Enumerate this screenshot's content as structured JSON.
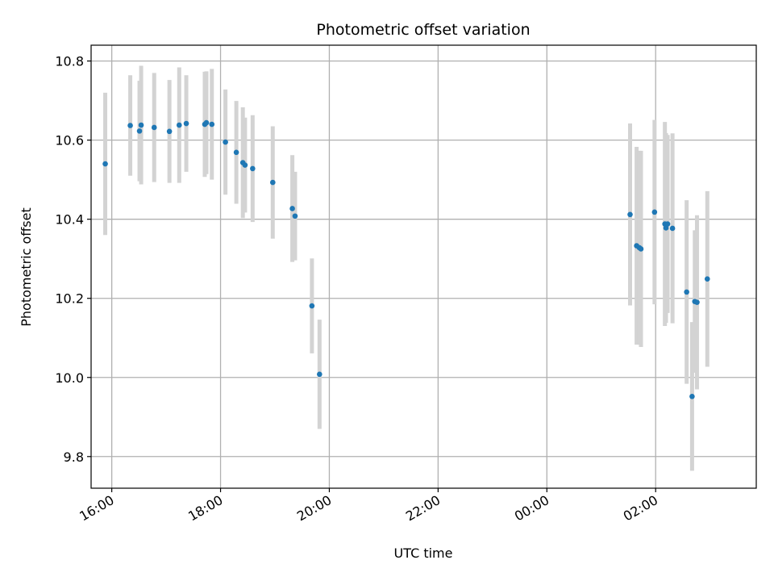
{
  "chart_data": {
    "type": "scatter",
    "title": "Photometric offset variation",
    "xlabel": "UTC time",
    "ylabel": "Photometric offset",
    "x_ticks": [
      "16:00",
      "18:00",
      "20:00",
      "22:00",
      "00:00",
      "02:00"
    ],
    "y_ticks": [
      "9.8",
      "10.0",
      "10.2",
      "10.4",
      "10.6",
      "10.8"
    ],
    "x_tick_hours": [
      16,
      18,
      20,
      22,
      24,
      26
    ],
    "y_tick_values": [
      9.8,
      10.0,
      10.2,
      10.4,
      10.6,
      10.8
    ],
    "xlim_hours": [
      15.62,
      27.85
    ],
    "ylim": [
      9.72,
      10.84
    ],
    "grid": true,
    "marker_color": "#1f77b4",
    "errorbar_color": "#d3d3d3",
    "points": [
      {
        "t": 15.88,
        "y": 10.54,
        "err": 0.18
      },
      {
        "t": 16.34,
        "y": 10.637,
        "err": 0.127
      },
      {
        "t": 16.51,
        "y": 10.623,
        "err": 0.127
      },
      {
        "t": 16.54,
        "y": 10.638,
        "err": 0.15
      },
      {
        "t": 16.78,
        "y": 10.632,
        "err": 0.138
      },
      {
        "t": 17.06,
        "y": 10.622,
        "err": 0.13
      },
      {
        "t": 17.24,
        "y": 10.638,
        "err": 0.146
      },
      {
        "t": 17.37,
        "y": 10.642,
        "err": 0.122
      },
      {
        "t": 17.71,
        "y": 10.64,
        "err": 0.133
      },
      {
        "t": 17.74,
        "y": 10.644,
        "err": 0.13
      },
      {
        "t": 17.84,
        "y": 10.64,
        "err": 0.14
      },
      {
        "t": 18.09,
        "y": 10.595,
        "err": 0.133
      },
      {
        "t": 18.29,
        "y": 10.569,
        "err": 0.13
      },
      {
        "t": 18.41,
        "y": 10.543,
        "err": 0.14
      },
      {
        "t": 18.45,
        "y": 10.537,
        "err": 0.12
      },
      {
        "t": 18.59,
        "y": 10.528,
        "err": 0.135
      },
      {
        "t": 18.96,
        "y": 10.493,
        "err": 0.142
      },
      {
        "t": 19.32,
        "y": 10.427,
        "err": 0.135
      },
      {
        "t": 19.37,
        "y": 10.408,
        "err": 0.112
      },
      {
        "t": 19.68,
        "y": 10.181,
        "err": 0.12
      },
      {
        "t": 19.82,
        "y": 10.008,
        "err": 0.138
      },
      {
        "t": 25.53,
        "y": 10.412,
        "err": 0.23
      },
      {
        "t": 25.65,
        "y": 10.333,
        "err": 0.25
      },
      {
        "t": 25.7,
        "y": 10.328,
        "err": 0.245
      },
      {
        "t": 25.73,
        "y": 10.325,
        "err": 0.248
      },
      {
        "t": 25.98,
        "y": 10.418,
        "err": 0.233
      },
      {
        "t": 26.17,
        "y": 10.388,
        "err": 0.258
      },
      {
        "t": 26.19,
        "y": 10.378,
        "err": 0.24
      },
      {
        "t": 26.22,
        "y": 10.388,
        "err": 0.225
      },
      {
        "t": 26.31,
        "y": 10.377,
        "err": 0.24
      },
      {
        "t": 26.57,
        "y": 10.216,
        "err": 0.232
      },
      {
        "t": 26.67,
        "y": 9.952,
        "err": 0.188
      },
      {
        "t": 26.72,
        "y": 10.192,
        "err": 0.18
      },
      {
        "t": 26.76,
        "y": 10.19,
        "err": 0.22
      },
      {
        "t": 26.95,
        "y": 10.249,
        "err": 0.222
      }
    ]
  }
}
